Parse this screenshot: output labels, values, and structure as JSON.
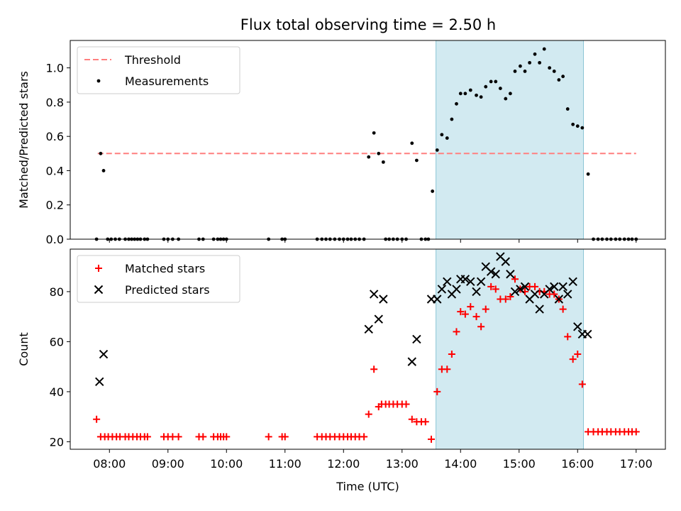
{
  "title": "Flux total observing time = 2.50 h",
  "chart_data": [
    {
      "type": "scatter",
      "panel": "top",
      "ylabel": "Matched/Predicted stars",
      "xlabel": "",
      "xlim": [
        7.33,
        17.5
      ],
      "ylim": [
        0,
        1.16
      ],
      "yticks": [
        0.0,
        0.2,
        0.4,
        0.6,
        0.8,
        1.0
      ],
      "ytick_labels": [
        "0.0",
        "0.2",
        "0.4",
        "0.6",
        "0.8",
        "1.0"
      ],
      "shaded_region": [
        13.58,
        16.1
      ],
      "shade_color": "#add8e6",
      "legend_position": "top-left",
      "series": [
        {
          "name": "Threshold",
          "kind": "dashed-line",
          "color": "#ff7f7f",
          "x": [
            7.8,
            17.0
          ],
          "y": [
            0.5,
            0.5
          ]
        },
        {
          "name": "Measurements",
          "kind": "dots",
          "color": "#000000",
          "x": [
            7.78,
            7.85,
            7.9,
            7.97,
            8.03,
            8.1,
            8.17,
            8.27,
            8.33,
            8.38,
            8.43,
            8.48,
            8.53,
            8.6,
            8.65,
            8.93,
            9.0,
            9.08,
            9.18,
            9.53,
            9.6,
            9.78,
            9.85,
            9.9,
            9.95,
            10.0,
            10.72,
            10.95,
            11.0,
            11.55,
            11.63,
            11.7,
            11.77,
            11.85,
            11.93,
            12.0,
            12.07,
            12.13,
            12.2,
            12.27,
            12.35,
            12.43,
            12.52,
            12.6,
            12.68,
            12.72,
            12.78,
            12.85,
            12.92,
            13.0,
            13.07,
            13.17,
            13.25,
            13.33,
            13.4,
            13.45,
            13.52,
            13.6,
            13.68,
            13.77,
            13.85,
            13.93,
            14.0,
            14.08,
            14.17,
            14.27,
            14.35,
            14.43,
            14.52,
            14.6,
            14.68,
            14.77,
            14.85,
            14.93,
            15.02,
            15.1,
            15.18,
            15.27,
            15.35,
            15.43,
            15.52,
            15.6,
            15.68,
            15.75,
            15.83,
            15.92,
            16.0,
            16.08,
            16.18,
            16.27,
            16.35,
            16.42,
            16.5,
            16.57,
            16.65,
            16.72,
            16.8,
            16.87,
            16.93,
            17.0
          ],
          "y": [
            0.0,
            0.5,
            0.4,
            0.0,
            0.0,
            0.0,
            0.0,
            0.0,
            0.0,
            0.0,
            0.0,
            0.0,
            0.0,
            0.0,
            0.0,
            0.0,
            0.0,
            0.0,
            0.0,
            0.0,
            0.0,
            0.0,
            0.0,
            0.0,
            0.0,
            0.0,
            0.0,
            0.0,
            0.0,
            0.0,
            0.0,
            0.0,
            0.0,
            0.0,
            0.0,
            0.0,
            0.0,
            0.0,
            0.0,
            0.0,
            0.0,
            0.48,
            0.62,
            0.5,
            0.45,
            0.0,
            0.0,
            0.0,
            0.0,
            0.0,
            0.0,
            0.56,
            0.46,
            0.0,
            0.0,
            0.0,
            0.28,
            0.52,
            0.61,
            0.59,
            0.7,
            0.79,
            0.85,
            0.85,
            0.87,
            0.84,
            0.83,
            0.89,
            0.92,
            0.92,
            0.88,
            0.82,
            0.85,
            0.98,
            1.01,
            0.98,
            1.03,
            1.08,
            1.03,
            1.11,
            1.0,
            0.98,
            0.93,
            0.95,
            0.76,
            0.67,
            0.66,
            0.65,
            0.38,
            0.0,
            0.0,
            0.0,
            0.0,
            0.0,
            0.0,
            0.0,
            0.0,
            0.0,
            0.0,
            0.0
          ]
        }
      ]
    },
    {
      "type": "scatter",
      "panel": "bottom",
      "xlabel": "Time (UTC)",
      "ylabel": "Count",
      "xlim": [
        7.33,
        17.5
      ],
      "ylim": [
        17,
        97
      ],
      "xticks": [
        8,
        9,
        10,
        11,
        12,
        13,
        14,
        15,
        16,
        17
      ],
      "xtick_labels": [
        "08:00",
        "09:00",
        "10:00",
        "11:00",
        "12:00",
        "13:00",
        "14:00",
        "15:00",
        "16:00",
        "17:00"
      ],
      "yticks": [
        20,
        40,
        60,
        80
      ],
      "ytick_labels": [
        "20",
        "40",
        "60",
        "80"
      ],
      "shaded_region": [
        13.58,
        16.1
      ],
      "shade_color": "#add8e6",
      "legend_position": "top-left",
      "series": [
        {
          "name": "Matched stars",
          "kind": "plus",
          "color": "#ff0000",
          "x": [
            7.78,
            7.85,
            7.92,
            7.98,
            8.05,
            8.12,
            8.18,
            8.27,
            8.33,
            8.4,
            8.47,
            8.53,
            8.6,
            8.65,
            8.93,
            9.0,
            9.08,
            9.18,
            9.53,
            9.6,
            9.78,
            9.85,
            9.9,
            9.95,
            10.0,
            10.72,
            10.95,
            11.0,
            11.55,
            11.63,
            11.7,
            11.77,
            11.85,
            11.93,
            12.0,
            12.07,
            12.13,
            12.2,
            12.27,
            12.35,
            12.43,
            12.52,
            12.6,
            12.65,
            12.72,
            12.78,
            12.85,
            12.92,
            13.0,
            13.07,
            13.17,
            13.25,
            13.33,
            13.4,
            13.5,
            13.6,
            13.68,
            13.77,
            13.85,
            13.93,
            14.0,
            14.08,
            14.17,
            14.27,
            14.35,
            14.43,
            14.52,
            14.6,
            14.68,
            14.77,
            14.85,
            14.93,
            15.02,
            15.1,
            15.18,
            15.27,
            15.35,
            15.43,
            15.52,
            15.6,
            15.68,
            15.75,
            15.83,
            15.92,
            16.0,
            16.08,
            16.18,
            16.27,
            16.35,
            16.42,
            16.5,
            16.57,
            16.65,
            16.72,
            16.8,
            16.87,
            16.93,
            17.0
          ],
          "y": [
            29,
            22,
            22,
            22,
            22,
            22,
            22,
            22,
            22,
            22,
            22,
            22,
            22,
            22,
            22,
            22,
            22,
            22,
            22,
            22,
            22,
            22,
            22,
            22,
            22,
            22,
            22,
            22,
            22,
            22,
            22,
            22,
            22,
            22,
            22,
            22,
            22,
            22,
            22,
            22,
            31,
            49,
            34,
            35,
            35,
            35,
            35,
            35,
            35,
            35,
            29,
            28,
            28,
            28,
            21,
            40,
            49,
            49,
            55,
            64,
            72,
            71,
            74,
            70,
            66,
            73,
            82,
            81,
            77,
            77,
            78,
            85,
            81,
            80,
            82,
            82,
            80,
            80,
            79,
            79,
            77,
            73,
            62,
            53,
            55,
            43,
            24,
            24,
            24,
            24,
            24,
            24,
            24,
            24,
            24,
            24,
            24,
            24
          ]
        },
        {
          "name": "Predicted stars",
          "kind": "x",
          "color": "#000000",
          "x": [
            7.83,
            7.9,
            12.43,
            12.52,
            12.6,
            12.68,
            13.17,
            13.25,
            13.5,
            13.6,
            13.68,
            13.77,
            13.85,
            13.93,
            14.0,
            14.08,
            14.17,
            14.27,
            14.35,
            14.43,
            14.52,
            14.6,
            14.68,
            14.77,
            14.85,
            14.93,
            15.02,
            15.1,
            15.18,
            15.27,
            15.35,
            15.43,
            15.52,
            15.6,
            15.68,
            15.75,
            15.83,
            15.92,
            16.0,
            16.08,
            16.17
          ],
          "y": [
            44,
            55,
            65,
            79,
            69,
            77,
            52,
            61,
            77,
            77,
            81,
            84,
            79,
            81,
            85,
            85,
            84,
            80,
            84,
            90,
            88,
            87,
            94,
            92,
            87,
            80,
            81,
            82,
            77,
            79,
            73,
            79,
            81,
            82,
            77,
            82,
            79,
            84,
            66,
            63,
            63
          ]
        }
      ]
    }
  ]
}
